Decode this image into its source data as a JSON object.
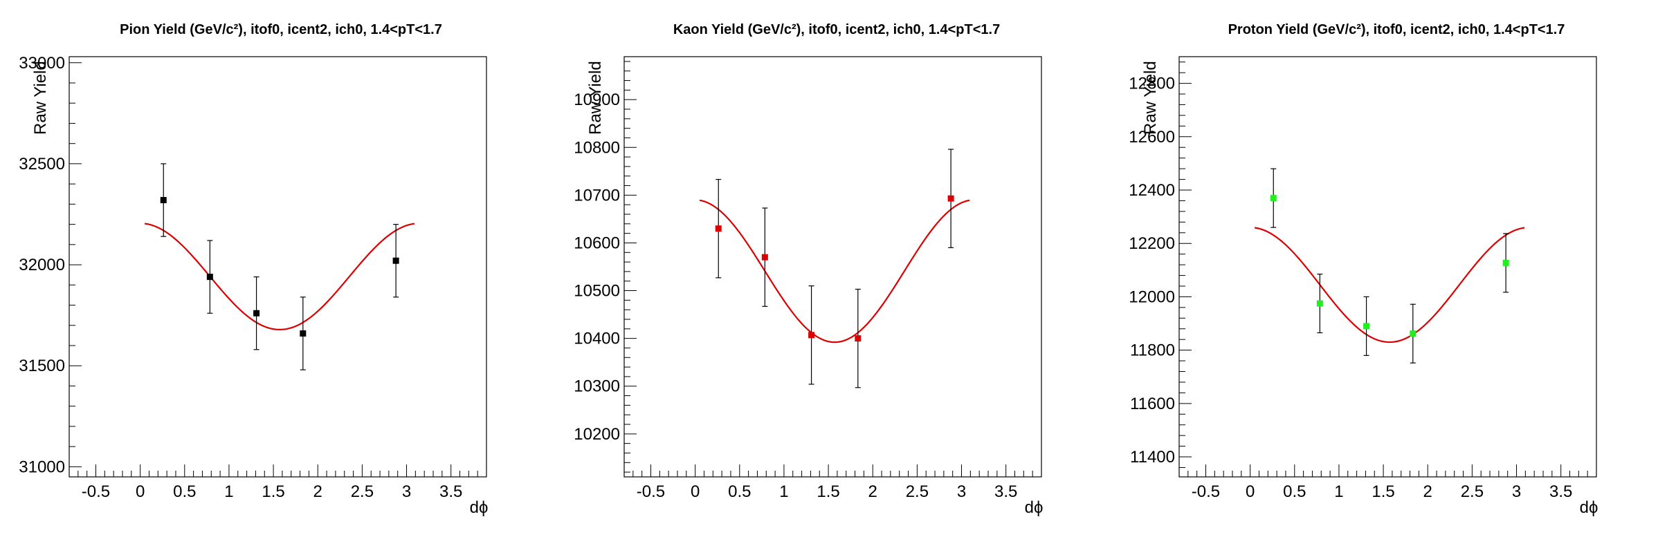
{
  "chart_data": [
    {
      "type": "scatter",
      "title": "Pion Yield (GeV/c²), itof0, icent2, ich0, 1.4<pT<1.7",
      "xlabel": "dϕ",
      "ylabel": "Raw Yield",
      "xlim": [
        -0.8,
        3.9
      ],
      "ylim": [
        30950,
        33030
      ],
      "x_ticks": [
        -0.5,
        0,
        0.5,
        1,
        1.5,
        2,
        2.5,
        3,
        3.5
      ],
      "x_tick_labels": [
        "-0.5",
        "0",
        "0.5",
        "1",
        "1.5",
        "2",
        "2.5",
        "3",
        "3.5"
      ],
      "y_ticks": [
        31000,
        31500,
        32000,
        32500,
        33000
      ],
      "y_tick_labels": [
        "31000",
        "31500",
        "32000",
        "32500",
        "33000"
      ],
      "grid": false,
      "legend": "none",
      "series": [
        {
          "marker_color": "#000000",
          "x": [
            0.262,
            0.785,
            1.309,
            1.833,
            2.88
          ],
          "y": [
            32320,
            31940,
            31760,
            31660,
            32020
          ],
          "err": [
            180,
            180,
            180,
            180,
            180
          ]
        }
      ],
      "fit": {
        "color": "#dd0000",
        "offset": 31942,
        "amplitude": 263,
        "x_range": [
          0.05,
          3.09
        ]
      }
    },
    {
      "type": "scatter",
      "title": "Kaon Yield (GeV/c²), itof0, icent2, ich0, 1.4<pT<1.7",
      "xlabel": "dϕ",
      "ylabel": "Raw Yield",
      "xlim": [
        -0.8,
        3.9
      ],
      "ylim": [
        10110,
        10990
      ],
      "x_ticks": [
        -0.5,
        0,
        0.5,
        1,
        1.5,
        2,
        2.5,
        3,
        3.5
      ],
      "x_tick_labels": [
        "-0.5",
        "0",
        "0.5",
        "1",
        "1.5",
        "2",
        "2.5",
        "3",
        "3.5"
      ],
      "y_ticks": [
        10200,
        10300,
        10400,
        10500,
        10600,
        10700,
        10800,
        10900
      ],
      "y_tick_labels": [
        "10200",
        "10300",
        "10400",
        "10500",
        "10600",
        "10700",
        "10800",
        "10900"
      ],
      "grid": false,
      "legend": "none",
      "series": [
        {
          "marker_color": "#dd0000",
          "x": [
            0.262,
            0.785,
            1.309,
            1.833,
            2.88
          ],
          "y": [
            10630,
            10570,
            10407,
            10400,
            10693
          ],
          "err": [
            103,
            103,
            103,
            103,
            103
          ]
        }
      ],
      "fit": {
        "color": "#dd0000",
        "offset": 10541,
        "amplitude": 149,
        "x_range": [
          0.05,
          3.09
        ]
      }
    },
    {
      "type": "scatter",
      "title": "Proton Yield (GeV/c²), itof0, icent2, ich0, 1.4<pT<1.7",
      "xlabel": "dϕ",
      "ylabel": "Raw Yield",
      "xlim": [
        -0.8,
        3.9
      ],
      "ylim": [
        11325,
        12900
      ],
      "x_ticks": [
        -0.5,
        0,
        0.5,
        1,
        1.5,
        2,
        2.5,
        3,
        3.5
      ],
      "x_tick_labels": [
        "-0.5",
        "0",
        "0.5",
        "1",
        "1.5",
        "2",
        "2.5",
        "3",
        "3.5"
      ],
      "y_ticks": [
        11400,
        11600,
        11800,
        12000,
        12200,
        12400,
        12600,
        12800
      ],
      "y_tick_labels": [
        "11400",
        "11600",
        "11800",
        "12000",
        "12200",
        "12400",
        "12600",
        "12800"
      ],
      "grid": false,
      "legend": "none",
      "series": [
        {
          "marker_color": "#22ee22",
          "x": [
            0.262,
            0.785,
            1.309,
            1.833,
            2.88
          ],
          "y": [
            12370,
            11975,
            11890,
            11862,
            12127
          ],
          "err": [
            110,
            110,
            110,
            110,
            110
          ]
        }
      ],
      "fit": {
        "color": "#dd0000",
        "offset": 12045,
        "amplitude": 215,
        "x_range": [
          0.05,
          3.09
        ]
      }
    }
  ]
}
